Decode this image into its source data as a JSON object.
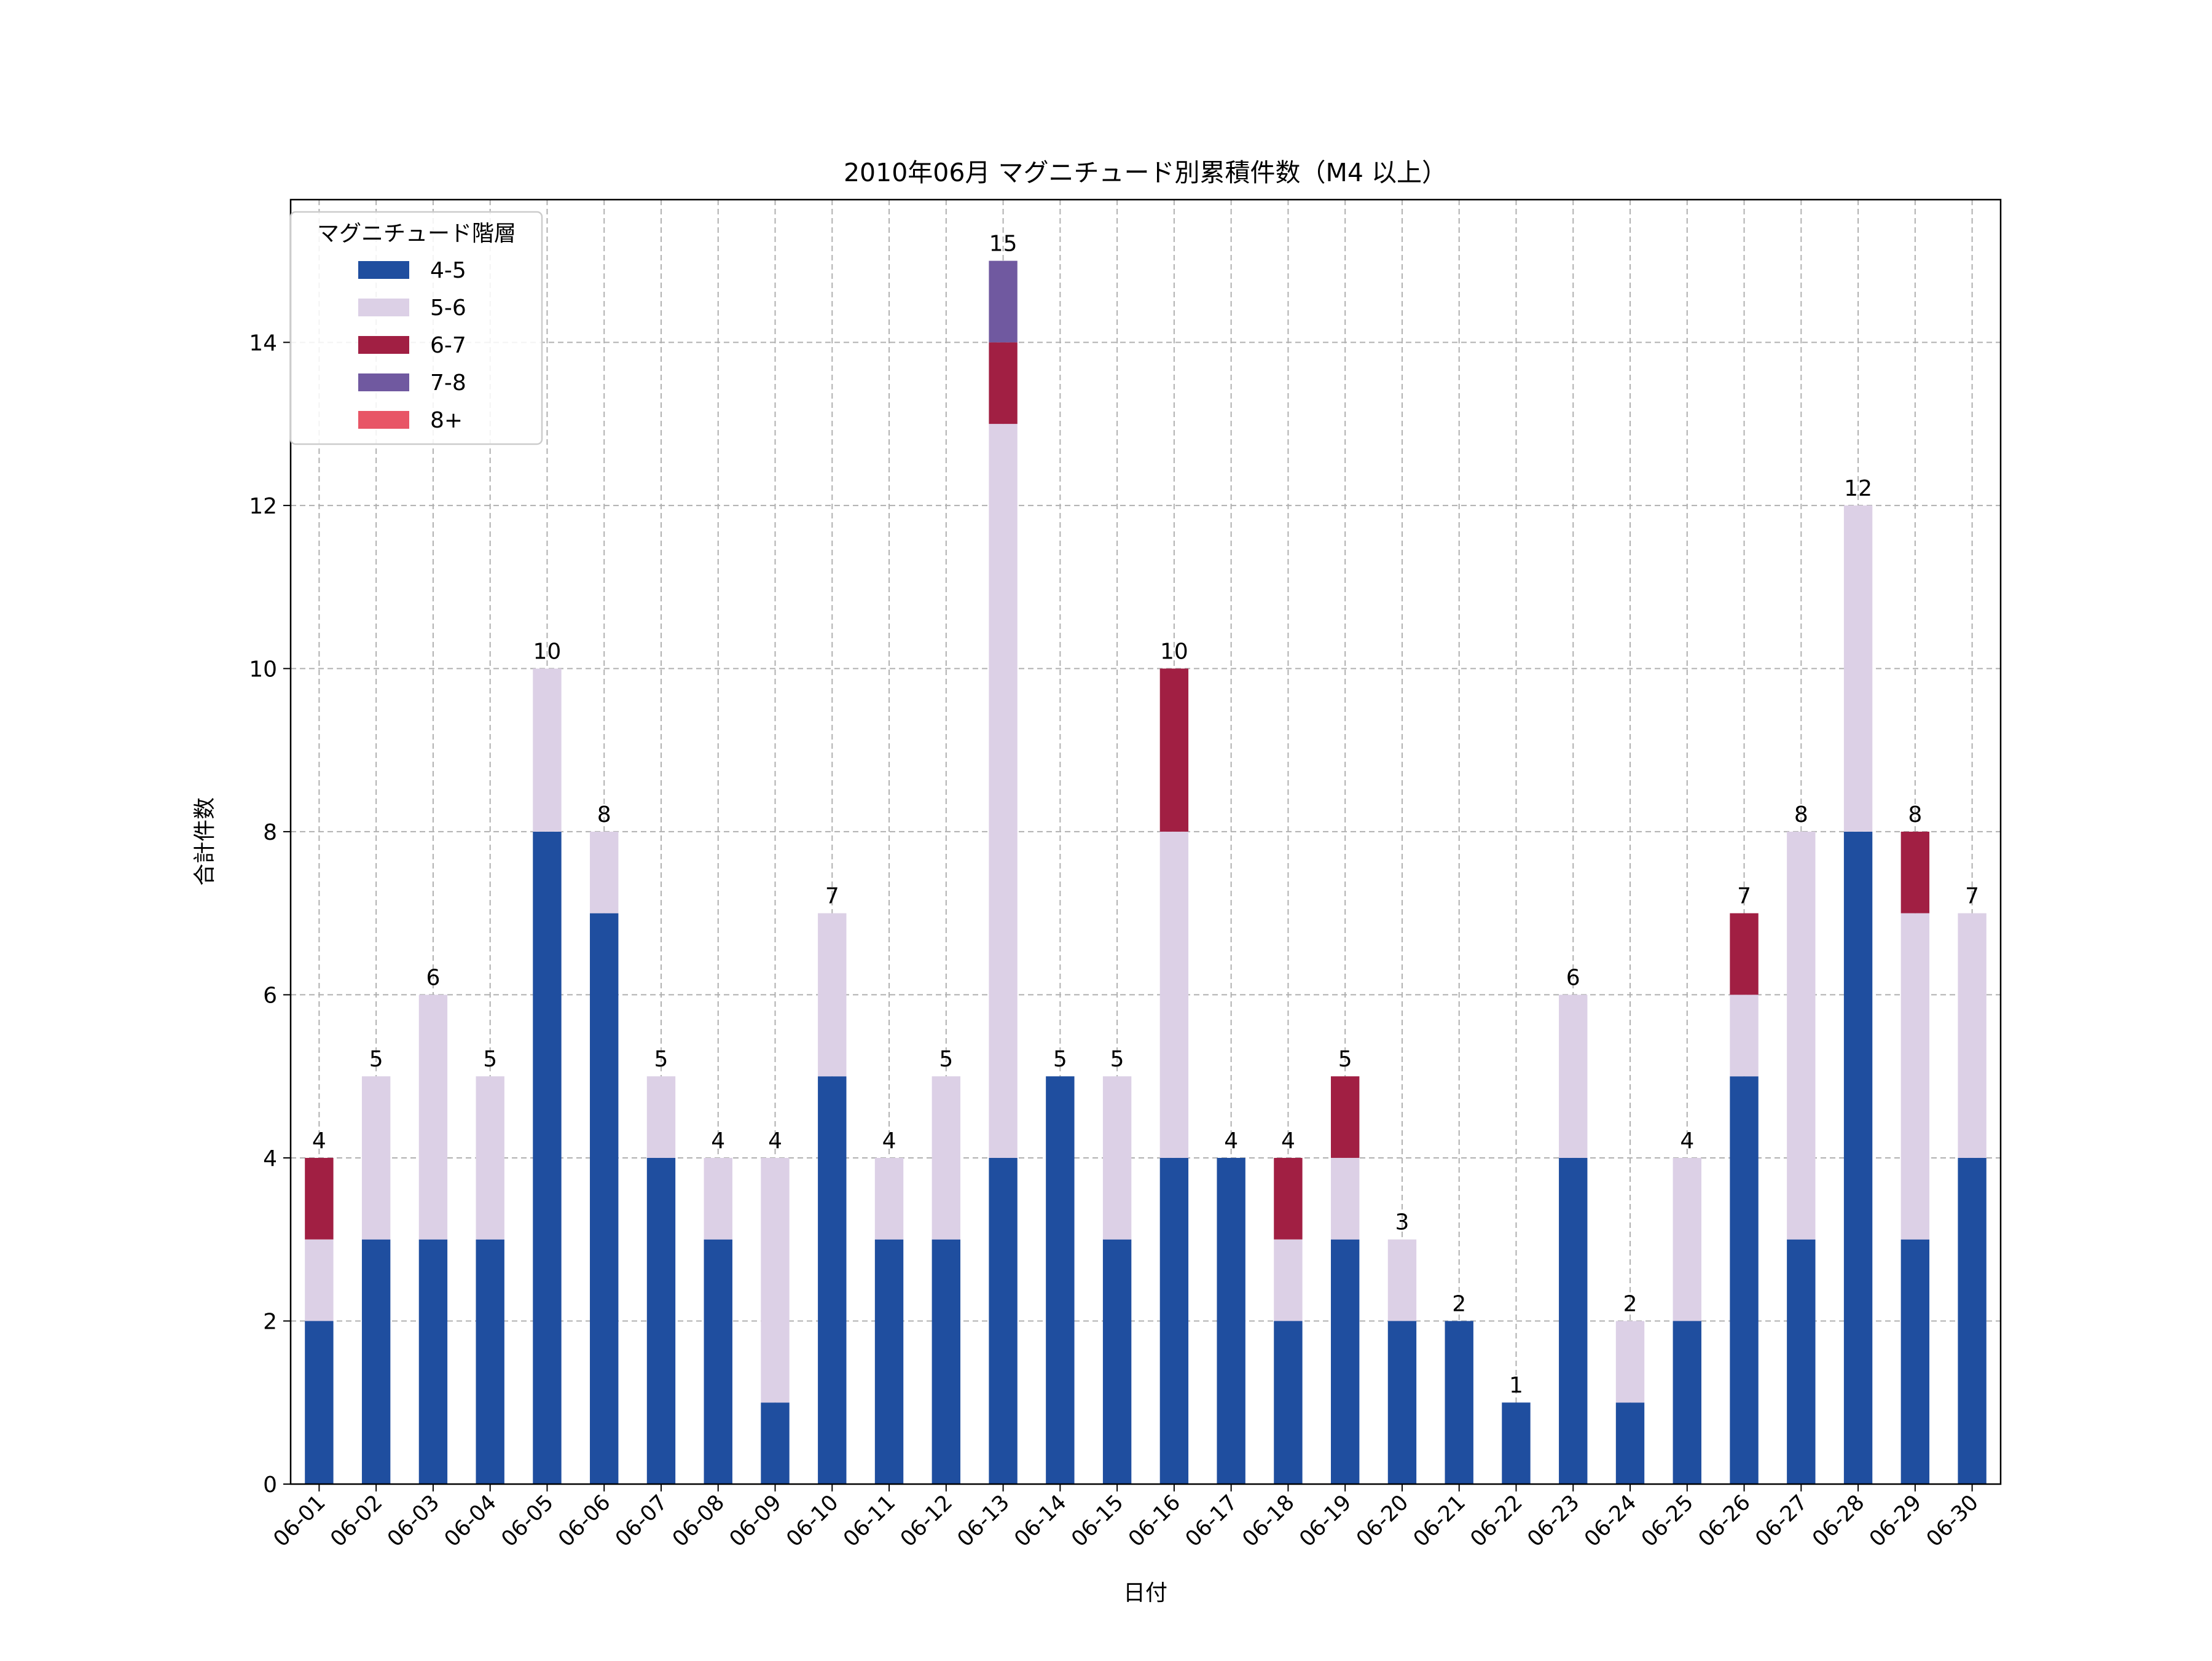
{
  "chart_data": {
    "type": "bar",
    "stacked": true,
    "title": "2010年06月 マグニチュード別累積件数（M4 以上）",
    "xlabel": "日付",
    "ylabel": "合計件数",
    "ylim": [
      0,
      15.75
    ],
    "yticks": [
      0,
      2,
      4,
      6,
      8,
      10,
      12,
      14
    ],
    "grid": true,
    "legend": {
      "title": "マグニチュード階層",
      "placement": "top-left"
    },
    "categories": [
      "06-01",
      "06-02",
      "06-03",
      "06-04",
      "06-05",
      "06-06",
      "06-07",
      "06-08",
      "06-09",
      "06-10",
      "06-11",
      "06-12",
      "06-13",
      "06-14",
      "06-15",
      "06-16",
      "06-17",
      "06-18",
      "06-19",
      "06-20",
      "06-21",
      "06-22",
      "06-23",
      "06-24",
      "06-25",
      "06-26",
      "06-27",
      "06-28",
      "06-29",
      "06-30"
    ],
    "series": [
      {
        "name": "4-5",
        "color": "#1f4e9f",
        "values": [
          2,
          3,
          3,
          3,
          8,
          7,
          4,
          3,
          1,
          5,
          3,
          3,
          4,
          5,
          3,
          4,
          4,
          2,
          3,
          2,
          2,
          1,
          4,
          1,
          2,
          5,
          3,
          8,
          3,
          4
        ]
      },
      {
        "name": "5-6",
        "color": "#dcd0e6",
        "values": [
          1,
          2,
          3,
          2,
          2,
          1,
          1,
          1,
          3,
          2,
          1,
          2,
          9,
          0,
          2,
          4,
          0,
          1,
          1,
          1,
          0,
          0,
          2,
          1,
          2,
          1,
          5,
          4,
          4,
          3
        ]
      },
      {
        "name": "6-7",
        "color": "#a11f43",
        "values": [
          1,
          0,
          0,
          0,
          0,
          0,
          0,
          0,
          0,
          0,
          0,
          0,
          1,
          0,
          0,
          2,
          0,
          1,
          1,
          0,
          0,
          0,
          0,
          0,
          0,
          1,
          0,
          0,
          1,
          0
        ]
      },
      {
        "name": "7-8",
        "color": "#7059a0",
        "values": [
          0,
          0,
          0,
          0,
          0,
          0,
          0,
          0,
          0,
          0,
          0,
          0,
          1,
          0,
          0,
          0,
          0,
          0,
          0,
          0,
          0,
          0,
          0,
          0,
          0,
          0,
          0,
          0,
          0,
          0
        ]
      },
      {
        "name": "8+",
        "color": "#e85566",
        "values": [
          0,
          0,
          0,
          0,
          0,
          0,
          0,
          0,
          0,
          0,
          0,
          0,
          0,
          0,
          0,
          0,
          0,
          0,
          0,
          0,
          0,
          0,
          0,
          0,
          0,
          0,
          0,
          0,
          0,
          0
        ]
      }
    ],
    "totals": [
      4,
      5,
      6,
      5,
      10,
      8,
      5,
      4,
      4,
      7,
      4,
      5,
      15,
      5,
      5,
      10,
      4,
      4,
      5,
      3,
      2,
      1,
      6,
      2,
      4,
      7,
      8,
      12,
      8,
      7
    ]
  }
}
